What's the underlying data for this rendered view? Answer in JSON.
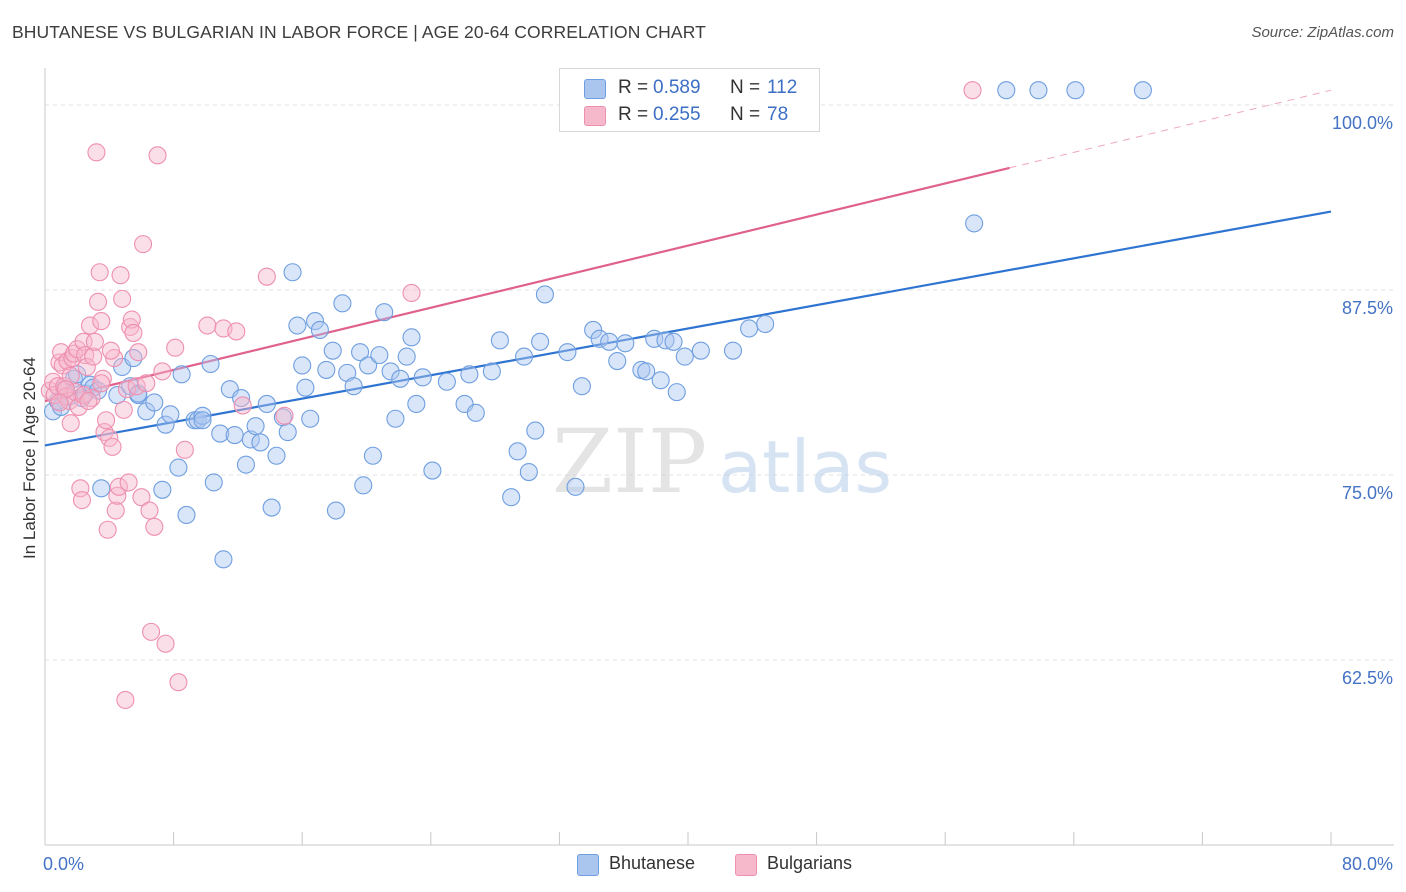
{
  "title": "BHUTANESE VS BULGARIAN IN LABOR FORCE | AGE 20-64 CORRELATION CHART",
  "source": "Source: ZipAtlas.com",
  "watermark": {
    "zip": "ZIP",
    "atlas": "atlas"
  },
  "legend": {
    "rows": [
      {
        "r_label": "R =",
        "r_value": "0.589",
        "n_label": "N =",
        "n_value": "112",
        "color": "#aac6ef"
      },
      {
        "r_label": "R =",
        "r_value": "0.255",
        "n_label": "N =",
        "n_value": "78",
        "color": "#f6b8cb"
      }
    ]
  },
  "bottom_legend": [
    {
      "label": "Bhutanese",
      "color": "#aac6ef"
    },
    {
      "label": "Bulgarians",
      "color": "#f6b8cb"
    }
  ],
  "chart_data": {
    "type": "scatter",
    "title": "BHUTANESE VS BULGARIAN IN LABOR FORCE | AGE 20-64 CORRELATION CHART",
    "xlabel": "",
    "ylabel": "In Labor Force | Age 20-64",
    "xlim": [
      0,
      80
    ],
    "ylim": [
      50,
      102.5
    ],
    "x_tick_labels": [
      "0.0%",
      "80.0%"
    ],
    "y_ticks": [
      62.5,
      75.0,
      87.5,
      100.0
    ],
    "y_tick_labels": [
      "62.5%",
      "75.0%",
      "87.5%",
      "100.0%"
    ],
    "grid": true,
    "series": [
      {
        "name": "Bhutanese",
        "color": "#6f9fe0",
        "fill": "#aac6ef",
        "trend": {
          "x": [
            0,
            80
          ],
          "y": [
            77.0,
            92.8
          ],
          "color": "#2e74d0",
          "dashed_from": null
        },
        "points": [
          [
            0.5,
            79.3
          ],
          [
            0.8,
            80.0
          ],
          [
            1.0,
            79.6
          ],
          [
            1.2,
            80.8
          ],
          [
            1.5,
            80.3
          ],
          [
            1.8,
            81.5
          ],
          [
            2.0,
            81.8
          ],
          [
            2.3,
            80.2
          ],
          [
            2.5,
            80.5
          ],
          [
            2.8,
            81.1
          ],
          [
            3.0,
            80.9
          ],
          [
            3.3,
            80.7
          ],
          [
            3.5,
            74.1
          ],
          [
            4.5,
            80.4
          ],
          [
            4.8,
            82.3
          ],
          [
            5.3,
            81.0
          ],
          [
            5.5,
            82.9
          ],
          [
            5.8,
            80.4
          ],
          [
            6.3,
            79.3
          ],
          [
            6.8,
            79.9
          ],
          [
            7.3,
            74.0
          ],
          [
            7.5,
            78.4
          ],
          [
            7.8,
            79.1
          ],
          [
            8.3,
            75.5
          ],
          [
            8.5,
            81.8
          ],
          [
            8.8,
            72.3
          ],
          [
            9.3,
            78.7
          ],
          [
            9.5,
            78.7
          ],
          [
            9.8,
            79.0
          ],
          [
            10.3,
            82.5
          ],
          [
            10.5,
            74.5
          ],
          [
            10.9,
            77.8
          ],
          [
            11.1,
            69.3
          ],
          [
            11.5,
            80.8
          ],
          [
            11.8,
            77.7
          ],
          [
            12.2,
            80.2
          ],
          [
            12.5,
            75.7
          ],
          [
            12.8,
            77.4
          ],
          [
            13.1,
            78.3
          ],
          [
            13.4,
            77.2
          ],
          [
            13.8,
            79.8
          ],
          [
            14.1,
            72.8
          ],
          [
            14.4,
            76.3
          ],
          [
            14.8,
            78.9
          ],
          [
            15.1,
            77.9
          ],
          [
            15.4,
            88.7
          ],
          [
            15.7,
            85.1
          ],
          [
            16.0,
            82.4
          ],
          [
            16.2,
            80.9
          ],
          [
            16.5,
            78.8
          ],
          [
            16.8,
            85.4
          ],
          [
            17.1,
            84.8
          ],
          [
            17.5,
            82.1
          ],
          [
            17.9,
            83.4
          ],
          [
            18.1,
            72.6
          ],
          [
            18.5,
            86.6
          ],
          [
            18.8,
            81.9
          ],
          [
            19.2,
            81.0
          ],
          [
            19.6,
            83.3
          ],
          [
            19.8,
            74.3
          ],
          [
            20.1,
            82.4
          ],
          [
            20.4,
            76.3
          ],
          [
            20.8,
            83.1
          ],
          [
            21.1,
            86.0
          ],
          [
            21.5,
            82.0
          ],
          [
            21.8,
            78.8
          ],
          [
            22.1,
            81.5
          ],
          [
            22.5,
            83.0
          ],
          [
            22.8,
            84.3
          ],
          [
            23.1,
            79.8
          ],
          [
            23.5,
            81.6
          ],
          [
            24.1,
            75.3
          ],
          [
            25.0,
            81.3
          ],
          [
            26.1,
            79.8
          ],
          [
            26.4,
            81.8
          ],
          [
            26.8,
            79.2
          ],
          [
            27.8,
            82.0
          ],
          [
            28.3,
            84.1
          ],
          [
            29.0,
            73.5
          ],
          [
            29.4,
            76.6
          ],
          [
            29.8,
            83.0
          ],
          [
            30.1,
            75.2
          ],
          [
            30.5,
            78.0
          ],
          [
            30.8,
            84.0
          ],
          [
            31.1,
            87.2
          ],
          [
            32.5,
            83.3
          ],
          [
            33.0,
            74.2
          ],
          [
            33.4,
            81.0
          ],
          [
            34.1,
            84.8
          ],
          [
            34.5,
            84.2
          ],
          [
            35.1,
            84.0
          ],
          [
            35.6,
            82.7
          ],
          [
            36.1,
            83.9
          ],
          [
            37.1,
            82.1
          ],
          [
            37.4,
            82.0
          ],
          [
            37.9,
            84.2
          ],
          [
            38.3,
            81.4
          ],
          [
            38.6,
            84.1
          ],
          [
            39.1,
            84.0
          ],
          [
            39.3,
            80.6
          ],
          [
            39.8,
            83.0
          ],
          [
            40.8,
            83.4
          ],
          [
            42.8,
            83.4
          ],
          [
            43.8,
            84.9
          ],
          [
            44.8,
            85.2
          ],
          [
            57.8,
            92.0
          ],
          [
            59.8,
            101.0
          ],
          [
            64.1,
            101.0
          ],
          [
            68.3,
            101.0
          ],
          [
            61.8,
            101.0
          ],
          [
            5.8,
            80.5
          ],
          [
            9.8,
            78.7
          ]
        ]
      },
      {
        "name": "Bulgarians",
        "color": "#ee8fb0",
        "fill": "#f6b8cb",
        "trend": {
          "x": [
            0,
            80
          ],
          "y": [
            80.0,
            101.0
          ],
          "color": "#e0608e",
          "dashed_from": 60
        },
        "points": [
          [
            0.3,
            80.7
          ],
          [
            0.5,
            81.3
          ],
          [
            0.6,
            80.4
          ],
          [
            0.8,
            81.0
          ],
          [
            0.9,
            82.6
          ],
          [
            1.0,
            83.3
          ],
          [
            1.1,
            82.4
          ],
          [
            1.2,
            81.0
          ],
          [
            1.3,
            80.3
          ],
          [
            1.4,
            82.7
          ],
          [
            1.5,
            80.0
          ],
          [
            1.6,
            81.7
          ],
          [
            1.7,
            82.9
          ],
          [
            1.8,
            83.2
          ],
          [
            1.9,
            80.6
          ],
          [
            2.0,
            83.5
          ],
          [
            2.1,
            79.6
          ],
          [
            2.2,
            74.1
          ],
          [
            2.3,
            73.3
          ],
          [
            2.4,
            84.0
          ],
          [
            2.5,
            83.1
          ],
          [
            2.6,
            82.3
          ],
          [
            2.8,
            85.1
          ],
          [
            2.9,
            80.2
          ],
          [
            3.0,
            83.0
          ],
          [
            3.1,
            84.0
          ],
          [
            3.2,
            96.8
          ],
          [
            3.3,
            86.7
          ],
          [
            3.4,
            88.7
          ],
          [
            3.5,
            85.4
          ],
          [
            3.6,
            81.5
          ],
          [
            3.7,
            77.9
          ],
          [
            3.8,
            78.7
          ],
          [
            3.9,
            71.3
          ],
          [
            4.0,
            77.5
          ],
          [
            4.2,
            76.9
          ],
          [
            4.3,
            82.9
          ],
          [
            4.4,
            72.6
          ],
          [
            4.5,
            73.6
          ],
          [
            4.6,
            74.2
          ],
          [
            4.7,
            88.5
          ],
          [
            4.8,
            86.9
          ],
          [
            4.9,
            79.4
          ],
          [
            5.0,
            59.8
          ],
          [
            5.1,
            80.8
          ],
          [
            5.2,
            74.5
          ],
          [
            5.3,
            85.0
          ],
          [
            5.4,
            85.5
          ],
          [
            5.5,
            84.6
          ],
          [
            5.7,
            81.0
          ],
          [
            5.8,
            83.3
          ],
          [
            6.0,
            73.5
          ],
          [
            6.1,
            90.6
          ],
          [
            6.3,
            81.2
          ],
          [
            6.5,
            72.6
          ],
          [
            6.6,
            64.4
          ],
          [
            6.8,
            71.5
          ],
          [
            7.0,
            96.6
          ],
          [
            7.3,
            82.0
          ],
          [
            7.5,
            63.6
          ],
          [
            8.1,
            83.6
          ],
          [
            8.3,
            61.0
          ],
          [
            8.7,
            76.7
          ],
          [
            10.1,
            85.1
          ],
          [
            11.1,
            84.9
          ],
          [
            11.9,
            84.7
          ],
          [
            12.3,
            79.7
          ],
          [
            13.8,
            88.4
          ],
          [
            14.9,
            79.0
          ],
          [
            22.8,
            87.3
          ],
          [
            57.7,
            101.0
          ],
          [
            1.3,
            80.8
          ],
          [
            1.6,
            78.5
          ],
          [
            2.4,
            80.4
          ],
          [
            2.7,
            80.0
          ],
          [
            3.5,
            81.2
          ],
          [
            4.1,
            83.4
          ],
          [
            0.9,
            79.9
          ]
        ]
      }
    ]
  }
}
